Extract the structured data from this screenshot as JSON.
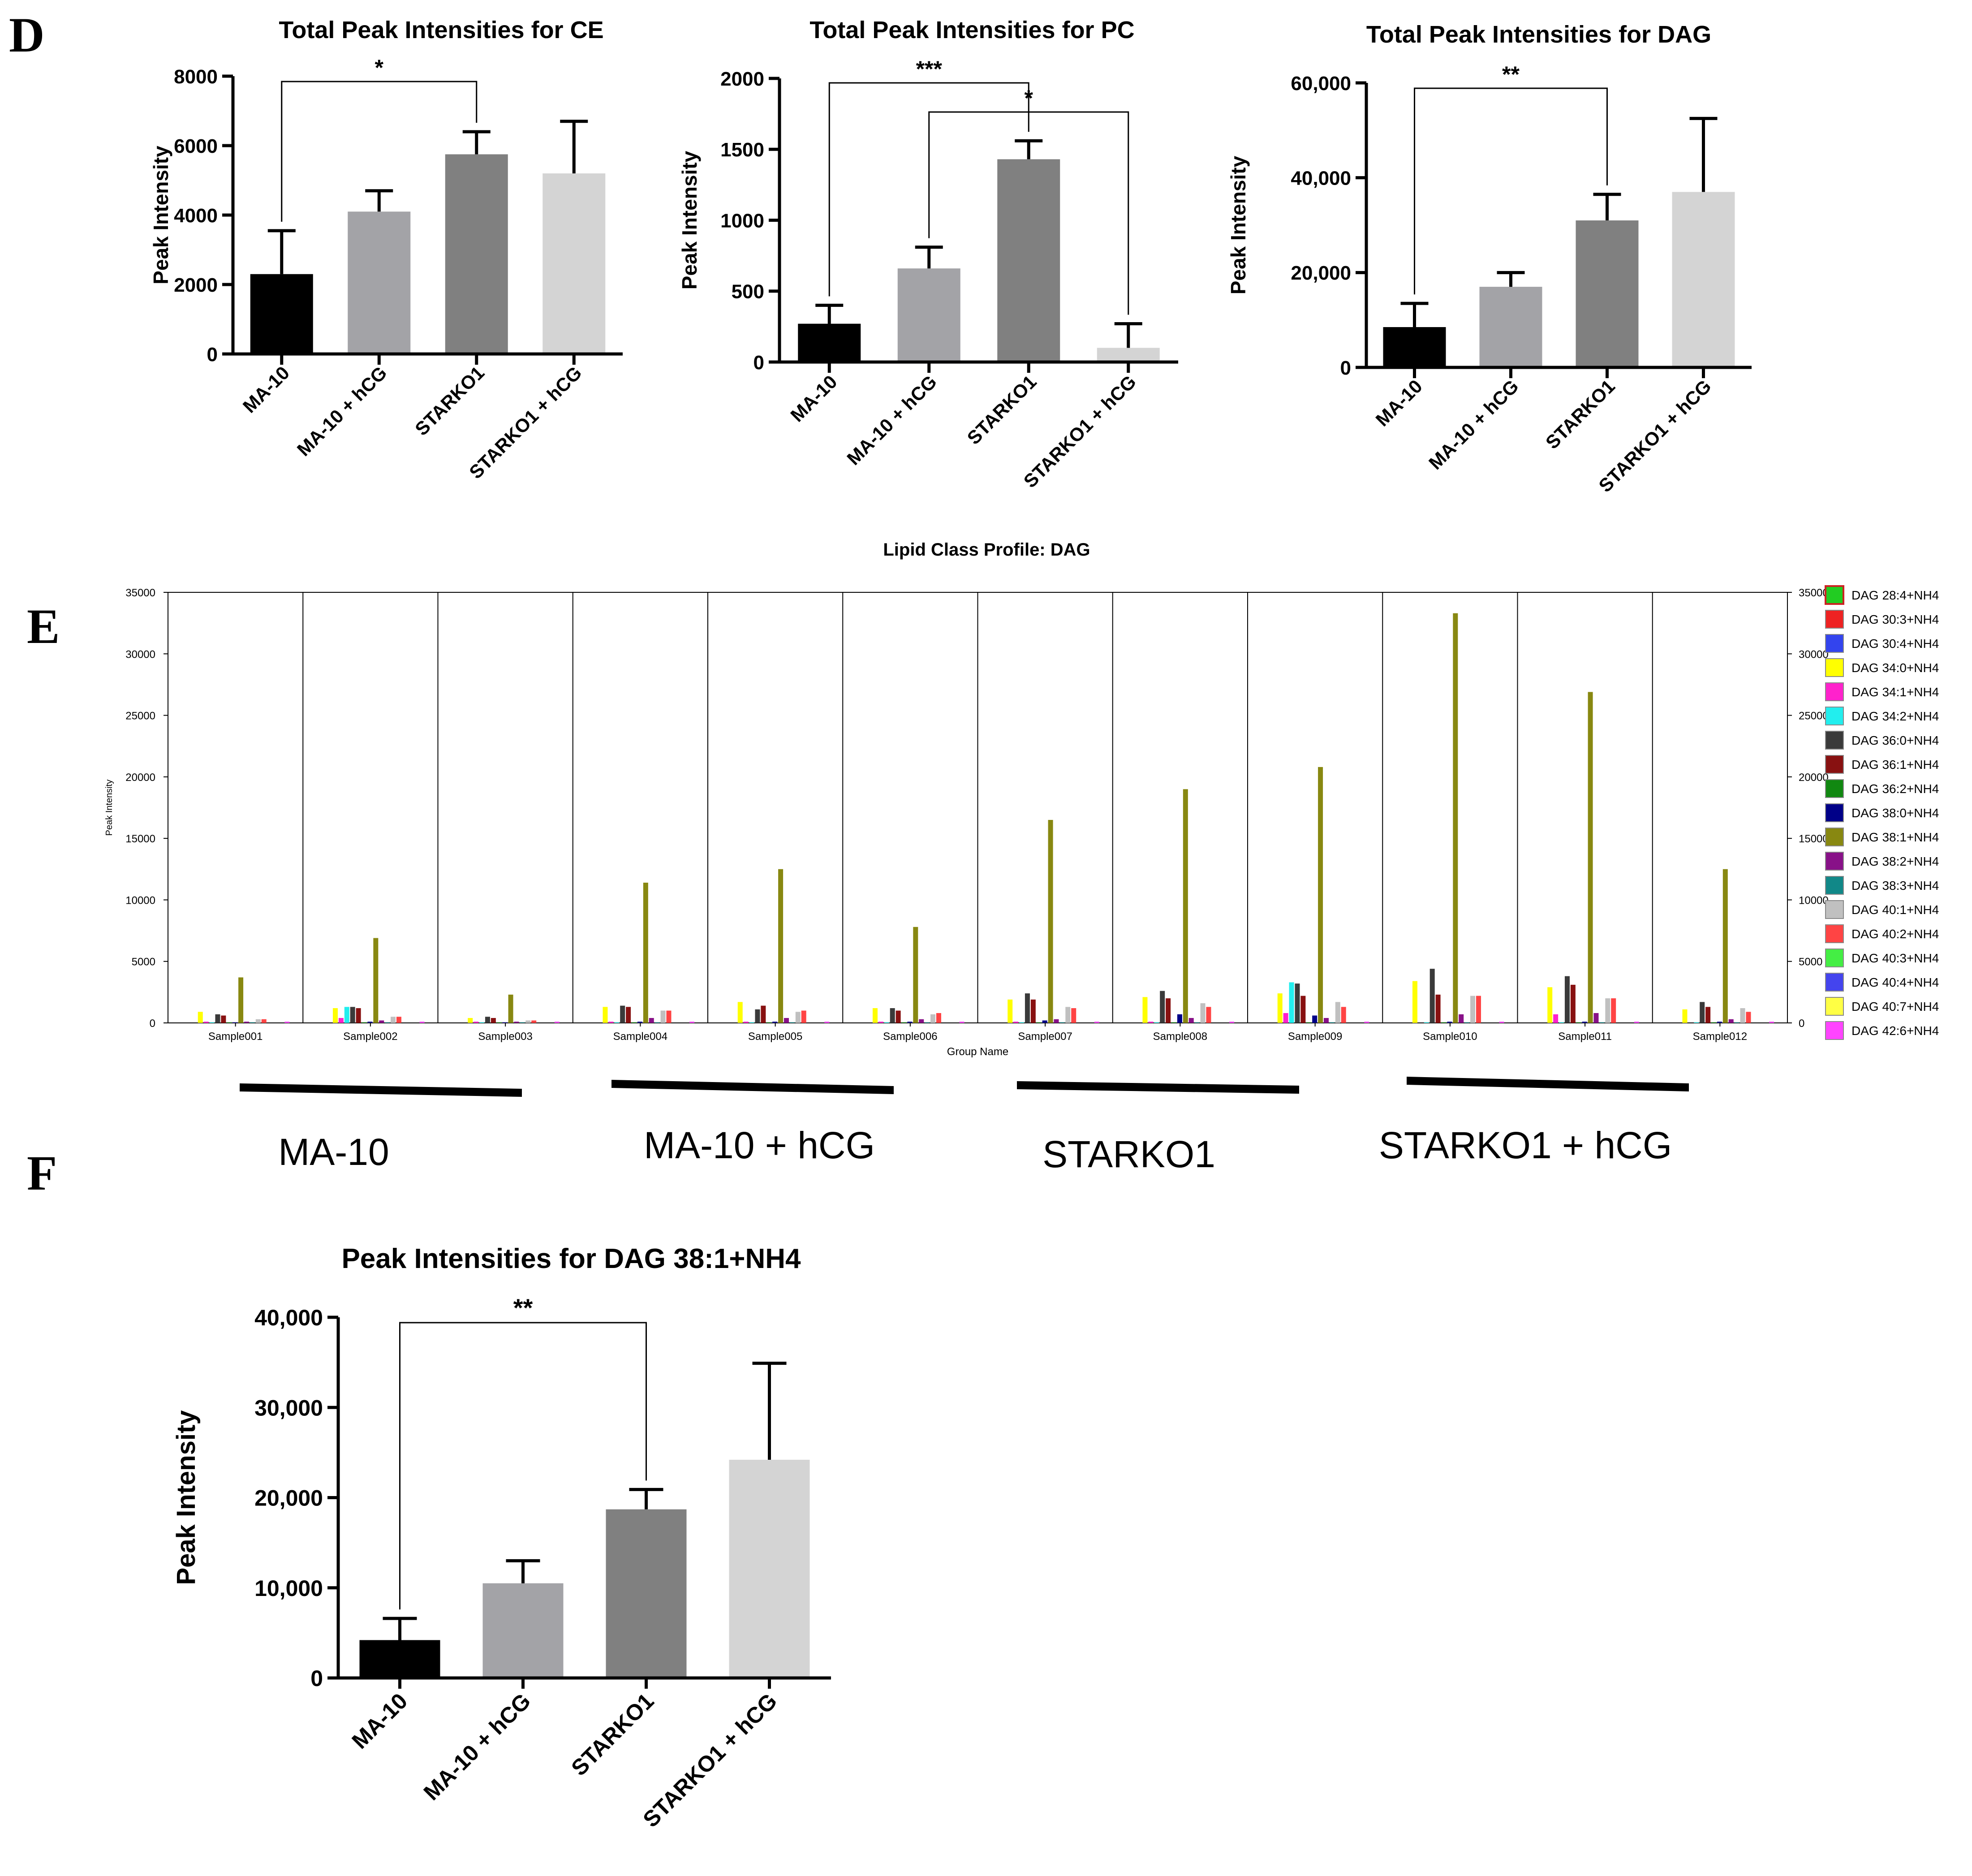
{
  "panels": {
    "d": "D",
    "e": "E",
    "f": "F"
  },
  "colors": {
    "ma10": "#000000",
    "ma10_hcg": "#a3a3a7",
    "starko1": "#808080",
    "starko1_hcg": "#d4d4d4"
  },
  "group_labels": [
    "MA-10",
    "MA-10 + hCG",
    "STARKO1",
    "STARKO1 + hCG"
  ],
  "chart_data": [
    {
      "id": "ce",
      "type": "bar",
      "title": "Total  Peak Intensities for CE",
      "ylabel": "Peak Intensity",
      "xlabel": "",
      "categories": [
        "MA-10",
        "MA-10 + hCG",
        "STARKO1",
        "STARKO1 + hCG"
      ],
      "values": [
        2300,
        4100,
        5750,
        5200
      ],
      "errors": [
        1250,
        600,
        650,
        1500
      ],
      "ylim": [
        0,
        8000
      ],
      "yticks": [
        "0",
        "2000",
        "4000",
        "6000",
        "8000"
      ],
      "significance": [
        {
          "from": 0,
          "to": 2,
          "label": "*"
        }
      ]
    },
    {
      "id": "pc",
      "type": "bar",
      "title": "Total  Peak Intensities for PC",
      "ylabel": "Peak Intensity",
      "xlabel": "",
      "categories": [
        "MA-10",
        "MA-10 + hCG",
        "STARKO1",
        "STARKO1 + hCG"
      ],
      "values": [
        270,
        660,
        1430,
        100
      ],
      "errors": [
        130,
        150,
        130,
        170
      ],
      "ylim": [
        0,
        2000
      ],
      "yticks": [
        "0",
        "500",
        "1000",
        "1500",
        "2000"
      ],
      "significance": [
        {
          "from": 0,
          "to": 2,
          "label": "***"
        },
        {
          "from": 1,
          "to": 3,
          "label": "*"
        }
      ]
    },
    {
      "id": "dag",
      "type": "bar",
      "title": "Total  Peak Intensities for DAG",
      "ylabel": "Peak Intensity",
      "xlabel": "",
      "categories": [
        "MA-10",
        "MA-10 + hCG",
        "STARKO1",
        "STARKO1 + hCG"
      ],
      "values": [
        8500,
        17000,
        31000,
        37000
      ],
      "errors": [
        5000,
        3000,
        5500,
        15500
      ],
      "ylim": [
        0,
        60000
      ],
      "yticks": [
        "0",
        "20,000",
        "40,000",
        "60,000"
      ],
      "significance": [
        {
          "from": 0,
          "to": 2,
          "label": "**"
        }
      ]
    },
    {
      "id": "profile",
      "type": "bar",
      "title": "Lipid Class Profile: DAG",
      "xlabel": "Group Name",
      "ylabel": "Peak Intensity",
      "ylim": [
        0,
        35000
      ],
      "yticks": [
        "0",
        "5000",
        "10000",
        "15000",
        "20000",
        "25000",
        "30000",
        "35000"
      ],
      "categories": [
        "Sample001",
        "Sample002",
        "Sample003",
        "Sample004",
        "Sample005",
        "Sample006",
        "Sample007",
        "Sample008",
        "Sample009",
        "Sample010",
        "Sample011",
        "Sample012"
      ],
      "series": [
        {
          "name": "DAG 28:4+NH4",
          "color": "#22cc22",
          "values": [
            0,
            0,
            0,
            0,
            0,
            0,
            0,
            0,
            0,
            0,
            0,
            0
          ]
        },
        {
          "name": "DAG 30:3+NH4",
          "color": "#ee2222",
          "values": [
            0,
            0,
            0,
            0,
            0,
            0,
            0,
            0,
            0,
            0,
            0,
            0
          ]
        },
        {
          "name": "DAG 30:4+NH4",
          "color": "#3344ee",
          "values": [
            0,
            0,
            0,
            0,
            0,
            0,
            0,
            0,
            0,
            0,
            0,
            0
          ]
        },
        {
          "name": "DAG 34:0+NH4",
          "color": "#ffff00",
          "values": [
            900,
            1200,
            400,
            1300,
            1700,
            1200,
            1900,
            2100,
            2400,
            3400,
            2900,
            1100
          ]
        },
        {
          "name": "DAG 34:1+NH4",
          "color": "#ff22cc",
          "values": [
            100,
            400,
            100,
            100,
            100,
            100,
            100,
            100,
            800,
            0,
            700,
            0
          ]
        },
        {
          "name": "DAG 34:2+NH4",
          "color": "#22eeee",
          "values": [
            50,
            1300,
            50,
            50,
            50,
            50,
            50,
            50,
            3300,
            50,
            50,
            50
          ]
        },
        {
          "name": "DAG 36:0+NH4",
          "color": "#3a3a3a",
          "values": [
            700,
            1300,
            500,
            1400,
            1100,
            1200,
            2400,
            2600,
            3200,
            4400,
            3800,
            1700
          ]
        },
        {
          "name": "DAG 36:1+NH4",
          "color": "#881111",
          "values": [
            600,
            1200,
            400,
            1300,
            1400,
            1000,
            1900,
            2000,
            2200,
            2300,
            3100,
            1300
          ]
        },
        {
          "name": "DAG 36:2+NH4",
          "color": "#118811",
          "values": [
            50,
            50,
            50,
            50,
            50,
            50,
            50,
            50,
            50,
            50,
            50,
            50
          ]
        },
        {
          "name": "DAG 38:0+NH4",
          "color": "#000088",
          "values": [
            50,
            100,
            50,
            100,
            100,
            100,
            200,
            700,
            600,
            100,
            100,
            100
          ]
        },
        {
          "name": "DAG 38:1+NH4",
          "color": "#888811",
          "values": [
            3700,
            6900,
            2300,
            11400,
            12500,
            7800,
            16500,
            19000,
            20800,
            33300,
            26900,
            12500
          ]
        },
        {
          "name": "DAG 38:2+NH4",
          "color": "#881188",
          "values": [
            100,
            200,
            100,
            400,
            400,
            300,
            300,
            400,
            400,
            700,
            800,
            300
          ]
        },
        {
          "name": "DAG 38:3+NH4",
          "color": "#118888",
          "values": [
            50,
            50,
            50,
            50,
            50,
            50,
            50,
            50,
            50,
            50,
            50,
            50
          ]
        },
        {
          "name": "DAG 40:1+NH4",
          "color": "#c0c0c0",
          "values": [
            300,
            500,
            200,
            1000,
            900,
            700,
            1300,
            1600,
            1700,
            2200,
            2000,
            1200
          ]
        },
        {
          "name": "DAG 40:2+NH4",
          "color": "#ff4444",
          "values": [
            300,
            500,
            200,
            1000,
            1000,
            800,
            1200,
            1300,
            1300,
            2200,
            2000,
            900
          ]
        },
        {
          "name": "DAG 40:3+NH4",
          "color": "#44ee44",
          "values": [
            0,
            0,
            0,
            0,
            0,
            0,
            0,
            0,
            0,
            0,
            0,
            0
          ]
        },
        {
          "name": "DAG 40:4+NH4",
          "color": "#4444ee",
          "values": [
            0,
            0,
            0,
            0,
            0,
            0,
            0,
            0,
            0,
            0,
            0,
            0
          ]
        },
        {
          "name": "DAG 40:7+NH4",
          "color": "#ffff44",
          "values": [
            0,
            0,
            0,
            0,
            0,
            0,
            0,
            0,
            0,
            0,
            0,
            0
          ]
        },
        {
          "name": "DAG 42:6+NH4",
          "color": "#ff44ff",
          "values": [
            100,
            100,
            100,
            100,
            100,
            100,
            100,
            100,
            100,
            100,
            100,
            100
          ]
        }
      ],
      "groups": [
        {
          "label": "MA-10",
          "samples": [
            0,
            1,
            2
          ]
        },
        {
          "label": "MA-10 + hCG",
          "samples": [
            3,
            4,
            5
          ]
        },
        {
          "label": "STARKO1",
          "samples": [
            6,
            7,
            8
          ]
        },
        {
          "label": "STARKO1 + hCG",
          "samples": [
            9,
            10,
            11
          ]
        }
      ]
    },
    {
      "id": "dag381",
      "type": "bar",
      "title": "Peak Intensities for DAG 38:1+NH4",
      "ylabel": "Peak Intensity",
      "xlabel": "",
      "categories": [
        "MA-10",
        "MA-10 + hCG",
        "STARKO1",
        "STARKO1 + hCG"
      ],
      "values": [
        4200,
        10500,
        18700,
        24200
      ],
      "errors": [
        2400,
        2500,
        2200,
        10700
      ],
      "ylim": [
        0,
        40000
      ],
      "yticks": [
        "0",
        "10,000",
        "20,000",
        "30,000",
        "40,000"
      ],
      "significance": [
        {
          "from": 0,
          "to": 2,
          "label": "**"
        }
      ]
    }
  ]
}
